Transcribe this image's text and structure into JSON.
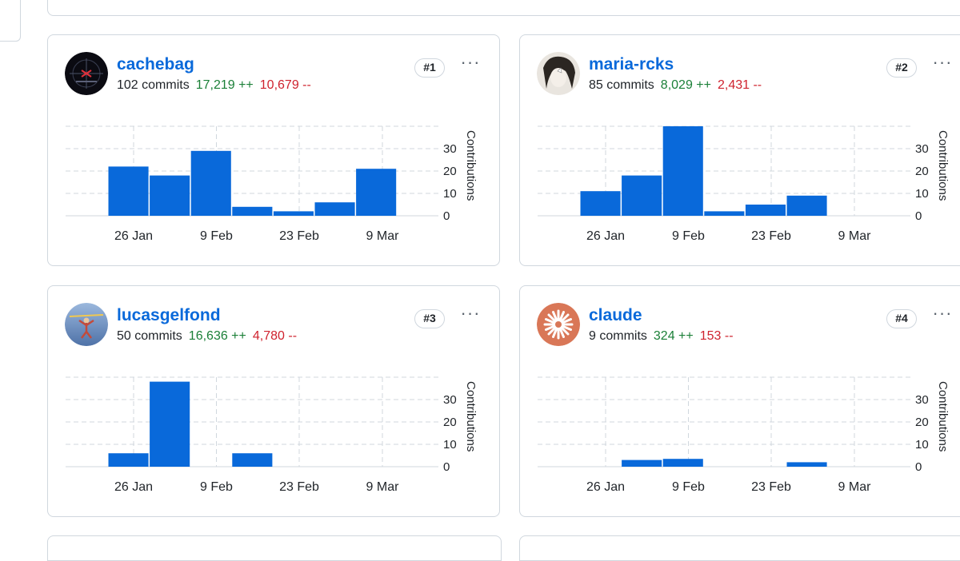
{
  "cards": [
    {
      "username": "cachebag",
      "commits": "102 commits",
      "additions": "17,219 ++",
      "deletions": "10,679 --",
      "rank": "#1",
      "avatar": "cachebag-avatar",
      "menu_icon": "···"
    },
    {
      "username": "maria-rcks",
      "commits": "85 commits",
      "additions": "8,029 ++",
      "deletions": "2,431 --",
      "rank": "#2",
      "avatar": "maria-rcks-avatar",
      "menu_icon": "···"
    },
    {
      "username": "lucasgelfond",
      "commits": "50 commits",
      "additions": "16,636 ++",
      "deletions": "4,780 --",
      "rank": "#3",
      "avatar": "lucasgelfond-avatar",
      "menu_icon": "···"
    },
    {
      "username": "claude",
      "commits": "9 commits",
      "additions": "324 ++",
      "deletions": "153 --",
      "rank": "#4",
      "avatar": "claude-avatar",
      "menu_icon": "···"
    }
  ],
  "colors": {
    "bar": "#0969da",
    "link": "#0969da",
    "additions": "#1a7f37",
    "deletions": "#cf222e",
    "border": "#d0d7de",
    "grid": "#d0d7de"
  },
  "chart_data": [
    {
      "type": "bar",
      "user": "cachebag",
      "x_tick_labels": [
        "26 Jan",
        "9 Feb",
        "23 Feb",
        "9 Mar"
      ],
      "values": [
        22,
        18,
        29,
        4,
        2,
        6,
        21
      ],
      "ylabel": "Contributions",
      "y_ticks": [
        0,
        10,
        20,
        30
      ],
      "ylim": [
        0,
        40
      ],
      "grid": true
    },
    {
      "type": "bar",
      "user": "maria-rcks",
      "x_tick_labels": [
        "26 Jan",
        "9 Feb",
        "23 Feb",
        "9 Mar"
      ],
      "values": [
        11,
        18,
        40,
        2,
        5,
        9,
        0
      ],
      "ylabel": "Contributions",
      "y_ticks": [
        0,
        10,
        20,
        30
      ],
      "ylim": [
        0,
        40
      ],
      "grid": true
    },
    {
      "type": "bar",
      "user": "lucasgelfond",
      "x_tick_labels": [
        "26 Jan",
        "9 Feb",
        "23 Feb",
        "9 Mar"
      ],
      "values": [
        6,
        38,
        0,
        6,
        0,
        0,
        0,
        0,
        0
      ],
      "ylabel": "Contributions",
      "y_ticks": [
        0,
        10,
        20,
        30
      ],
      "ylim": [
        0,
        40
      ],
      "grid": true
    },
    {
      "type": "bar",
      "user": "claude",
      "x_tick_labels": [
        "26 Jan",
        "9 Feb",
        "23 Feb",
        "9 Mar"
      ],
      "values": [
        0,
        3,
        3.5,
        0,
        0,
        2,
        0,
        0,
        0
      ],
      "ylabel": "Contributions",
      "y_ticks": [
        0,
        10,
        20,
        30
      ],
      "ylim": [
        0,
        40
      ],
      "grid": true
    }
  ]
}
